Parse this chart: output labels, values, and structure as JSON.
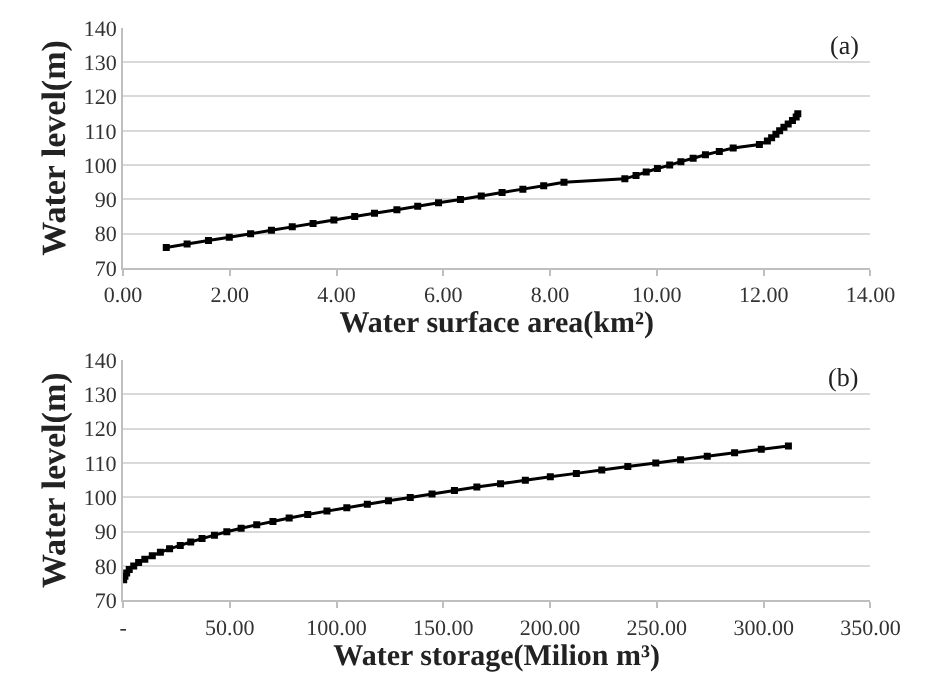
{
  "chart_data": [
    {
      "type": "line",
      "xlabel": "Water surface area(km²)",
      "ylabel": "Water level(m)",
      "annotations": [
        "(a)"
      ],
      "series": [
        {
          "color": "#000000",
          "x": [
            0.81,
            1.2,
            1.6,
            1.99,
            2.39,
            2.78,
            3.17,
            3.56,
            3.95,
            4.34,
            4.71,
            5.13,
            5.52,
            5.91,
            6.32,
            6.71,
            7.1,
            7.49,
            7.88,
            8.26,
            9.4,
            9.61,
            9.8,
            10.01,
            10.24,
            10.45,
            10.68,
            10.91,
            11.17,
            11.43,
            11.92,
            12.07,
            12.15,
            12.23,
            12.3,
            12.38,
            12.46,
            12.54,
            12.61,
            12.64
          ],
          "values": [
            76,
            77,
            78,
            79,
            80,
            81,
            82,
            83,
            84,
            85,
            86,
            87,
            88,
            89,
            90,
            91,
            92,
            93,
            94,
            95,
            96,
            97,
            98,
            99,
            100,
            101,
            102,
            103,
            104,
            105,
            106,
            107,
            108,
            109,
            110,
            111,
            112,
            113,
            114,
            115
          ]
        }
      ],
      "xlim": [
        0,
        14
      ],
      "xticks": [
        {
          "value": 0,
          "label": "0.00"
        },
        {
          "value": 2,
          "label": "2.00"
        },
        {
          "value": 4,
          "label": "4.00"
        },
        {
          "value": 6,
          "label": "6.00"
        },
        {
          "value": 8,
          "label": "8.00"
        },
        {
          "value": 10,
          "label": "10.00"
        },
        {
          "value": 12,
          "label": "12.00"
        },
        {
          "value": 14,
          "label": "14.00"
        }
      ],
      "ylim": [
        70,
        140
      ],
      "yticks": [
        70,
        80,
        90,
        100,
        110,
        120,
        130,
        140
      ],
      "grid": "y",
      "marker": "square",
      "line_style": "solid"
    },
    {
      "type": "line",
      "xlabel": "Water storage(Milion m³)",
      "ylabel": "Water level(m)",
      "annotations": [
        "(b)"
      ],
      "series": [
        {
          "color": "#000000",
          "x": [
            0.3,
            0.9,
            1.7,
            2.9,
            5.0,
            7.3,
            10.2,
            13.7,
            17.5,
            21.8,
            26.8,
            31.7,
            37.0,
            42.8,
            48.6,
            55.3,
            62.6,
            70.2,
            77.8,
            86.5,
            95.5,
            104.8,
            114.4,
            124.3,
            134.5,
            144.7,
            155.2,
            165.7,
            176.8,
            188.4,
            200.1,
            212.3,
            224.2,
            236.4,
            249.5,
            261.1,
            273.6,
            286.4,
            298.9,
            311.6
          ],
          "values": [
            76,
            77,
            78,
            79,
            80,
            81,
            82,
            83,
            84,
            85,
            86,
            87,
            88,
            89,
            90,
            91,
            92,
            93,
            94,
            95,
            96,
            97,
            98,
            99,
            100,
            101,
            102,
            103,
            104,
            105,
            106,
            107,
            108,
            109,
            110,
            111,
            112,
            113,
            114,
            115
          ]
        }
      ],
      "xlim": [
        0,
        350
      ],
      "xticks": [
        {
          "value": 0,
          "label": "-"
        },
        {
          "value": 50,
          "label": "50.00"
        },
        {
          "value": 100,
          "label": "100.00"
        },
        {
          "value": 150,
          "label": "150.00"
        },
        {
          "value": 200,
          "label": "200.00"
        },
        {
          "value": 250,
          "label": "250.00"
        },
        {
          "value": 300,
          "label": "300.00"
        },
        {
          "value": 350,
          "label": "350.00"
        }
      ],
      "ylim": [
        70,
        140
      ],
      "yticks": [
        70,
        80,
        90,
        100,
        110,
        120,
        130,
        140
      ],
      "grid": "y",
      "marker": "square",
      "line_style": "solid"
    }
  ]
}
